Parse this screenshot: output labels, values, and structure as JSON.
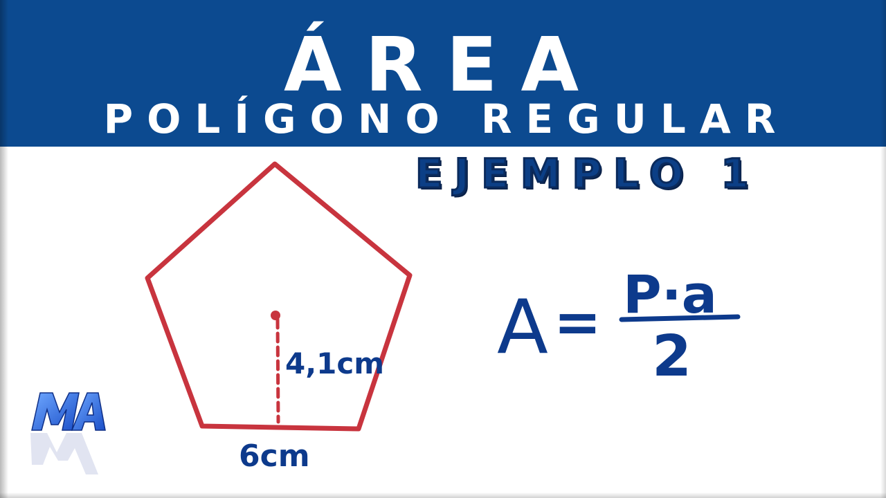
{
  "header": {
    "title": "ÁREA",
    "subtitle": "POLÍGONO REGULAR",
    "example": "EJEMPLO 1"
  },
  "figure": {
    "apothem_label": "4,1cm",
    "side_label": "6cm"
  },
  "formula": {
    "lhs": "A",
    "equals": "=",
    "numerator": "P·a",
    "denominator": "2"
  },
  "logo": {
    "text": "MA"
  },
  "colors": {
    "banner": "#0c4a90",
    "polygon": "#c8343e",
    "ink": "#0d3a8c"
  }
}
